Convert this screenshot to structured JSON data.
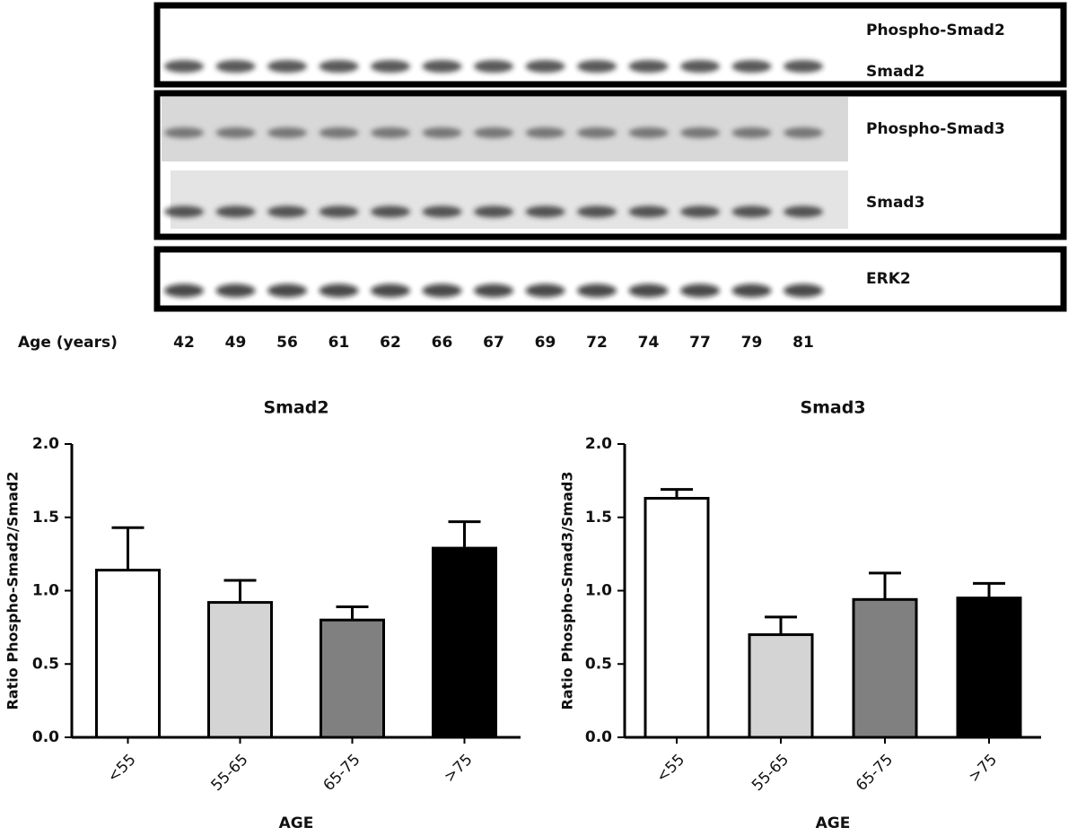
{
  "blot": {
    "labels": [
      "Phospho-Smad2",
      "Smad2",
      "Phospho-Smad3",
      "Smad3",
      "ERK2"
    ],
    "age_label": "Age (years)",
    "ages": [
      "42",
      "49",
      "56",
      "61",
      "62",
      "66",
      "67",
      "69",
      "72",
      "74",
      "77",
      "79",
      "81"
    ]
  },
  "chart_data": [
    {
      "type": "bar",
      "title": "Smad2",
      "x_label": "AGE",
      "y_label": "Ratio Phospho-Smad2/Smad2",
      "categories": [
        "<55",
        "55-65",
        "65-75",
        ">75"
      ],
      "values": [
        1.14,
        0.92,
        0.8,
        1.29
      ],
      "errors": [
        0.29,
        0.15,
        0.09,
        0.18
      ],
      "colors": [
        "#ffffff",
        "#d4d4d4",
        "#808080",
        "#000000"
      ],
      "ylim": [
        0,
        2
      ],
      "yticks": [
        {
          "value": 0,
          "label": "0.0"
        },
        {
          "value": 0.5,
          "label": "0.5"
        },
        {
          "value": 1,
          "label": "1.0"
        },
        {
          "value": 1.5,
          "label": "1.5"
        },
        {
          "value": 2,
          "label": "2.0"
        }
      ]
    },
    {
      "type": "bar",
      "title": "Smad3",
      "x_label": "AGE",
      "y_label": "Ratio Phospho-Smad3/Smad3",
      "categories": [
        "<55",
        "55-65",
        "65-75",
        ">75"
      ],
      "values": [
        1.63,
        0.7,
        0.94,
        0.95
      ],
      "errors": [
        0.06,
        0.12,
        0.18,
        0.1
      ],
      "colors": [
        "#ffffff",
        "#d4d4d4",
        "#808080",
        "#000000"
      ],
      "ylim": [
        0,
        2
      ],
      "yticks": [
        {
          "value": 0,
          "label": "0.0"
        },
        {
          "value": 0.5,
          "label": "0.5"
        },
        {
          "value": 1,
          "label": "1.0"
        },
        {
          "value": 1.5,
          "label": "1.5"
        },
        {
          "value": 2,
          "label": "2.0"
        }
      ]
    }
  ]
}
